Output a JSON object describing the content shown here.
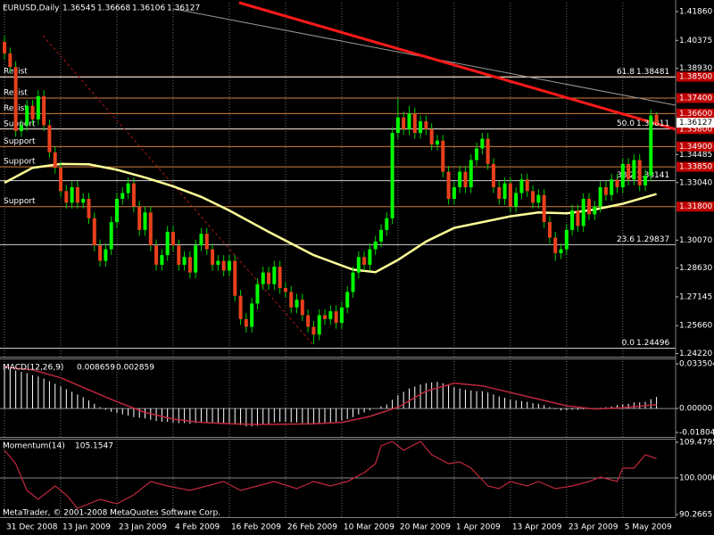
{
  "chart_data": [
    {
      "type": "candlestick",
      "title": "EURUSD,Daily",
      "footer": "MetaTrader, © 2001-2008 MetaQuotes Software Corp.",
      "xlim": [
        -0.8,
        119.4
      ],
      "xticks": [
        {
          "value": 0,
          "label": "31 Dec 2008"
        },
        {
          "value": 10,
          "label": "13 Jan 2009"
        },
        {
          "value": 20,
          "label": "23 Jan 2009"
        },
        {
          "value": 30,
          "label": "4 Feb 2009"
        },
        {
          "value": 40,
          "label": "16 Feb 2009"
        },
        {
          "value": 50,
          "label": "26 Feb 2009"
        },
        {
          "value": 60,
          "label": "10 Mar 2009"
        },
        {
          "value": 70,
          "label": "20 Mar 2009"
        },
        {
          "value": 80,
          "label": "1 Apr 2009"
        },
        {
          "value": 90,
          "label": "13 Apr 2009"
        },
        {
          "value": 100,
          "label": "23 Apr 2009"
        },
        {
          "value": 110,
          "label": "5 May 2009"
        }
      ],
      "grid": true,
      "ylim": [
        1.2406,
        1.4232
      ],
      "yticks": [
        {
          "value": 1.4186,
          "label": "1.41860"
        },
        1.40375,
        {
          "value": 1.3893,
          "label": "1.38930"
        },
        1.34485,
        {
          "value": 1.3304,
          "label": "1.33040"
        },
        {
          "value": 1.3007,
          "label": "1.30070"
        },
        {
          "value": 1.2863,
          "label": "1.28630"
        },
        1.27145,
        {
          "value": 1.2566,
          "label": "1.25660"
        },
        {
          "value": 1.2422,
          "label": "1.24220"
        }
      ],
      "bull_color": "#00ff00",
      "bear_color": "#e8401c",
      "wick_color": "#00d000",
      "candles": [
        [
          1.403,
          1.406,
          1.394,
          1.397
        ],
        [
          1.397,
          1.4,
          1.387,
          1.39
        ],
        [
          1.39,
          1.393,
          1.354,
          1.357
        ],
        [
          1.357,
          1.363,
          1.354,
          1.36
        ],
        [
          1.36,
          1.373,
          1.357,
          1.37
        ],
        [
          1.37,
          1.373,
          1.36,
          1.363
        ],
        [
          1.363,
          1.378,
          1.36,
          1.375
        ],
        [
          1.375,
          1.378,
          1.357,
          1.36
        ],
        [
          1.36,
          1.363,
          1.343,
          1.346
        ],
        [
          1.346,
          1.349,
          1.335,
          1.338
        ],
        [
          1.338,
          1.341,
          1.323,
          1.326
        ],
        [
          1.326,
          1.329,
          1.317,
          1.32
        ],
        [
          1.32,
          1.331,
          1.317,
          1.328
        ],
        [
          1.328,
          1.331,
          1.317,
          1.32
        ],
        [
          1.32,
          1.325,
          1.317,
          1.322
        ],
        [
          1.322,
          1.325,
          1.309,
          1.312
        ],
        [
          1.312,
          1.315,
          1.295,
          1.298
        ],
        [
          1.298,
          1.301,
          1.287,
          1.29
        ],
        [
          1.29,
          1.299,
          1.287,
          1.296
        ],
        [
          1.296,
          1.313,
          1.293,
          1.31
        ],
        [
          1.31,
          1.325,
          1.307,
          1.322
        ],
        [
          1.322,
          1.328,
          1.319,
          1.325
        ],
        [
          1.325,
          1.333,
          1.322,
          1.33
        ],
        [
          1.33,
          1.333,
          1.315,
          1.318
        ],
        [
          1.318,
          1.321,
          1.303,
          1.306
        ],
        [
          1.306,
          1.318,
          1.303,
          1.315
        ],
        [
          1.315,
          1.318,
          1.295,
          1.298
        ],
        [
          1.298,
          1.301,
          1.285,
          1.288
        ],
        [
          1.288,
          1.296,
          1.285,
          1.293
        ],
        [
          1.293,
          1.308,
          1.29,
          1.305
        ],
        [
          1.305,
          1.308,
          1.295,
          1.298
        ],
        [
          1.298,
          1.301,
          1.285,
          1.288
        ],
        [
          1.288,
          1.295,
          1.285,
          1.292
        ],
        [
          1.292,
          1.295,
          1.281,
          1.284
        ],
        [
          1.284,
          1.301,
          1.281,
          1.298
        ],
        [
          1.298,
          1.307,
          1.295,
          1.304
        ],
        [
          1.304,
          1.307,
          1.293,
          1.296
        ],
        [
          1.296,
          1.299,
          1.285,
          1.288
        ],
        [
          1.288,
          1.293,
          1.285,
          1.29
        ],
        [
          1.29,
          1.293,
          1.282,
          1.285
        ],
        [
          1.285,
          1.293,
          1.282,
          1.29
        ],
        [
          1.29,
          1.293,
          1.269,
          1.272
        ],
        [
          1.272,
          1.275,
          1.257,
          1.26
        ],
        [
          1.26,
          1.263,
          1.253,
          1.256
        ],
        [
          1.256,
          1.271,
          1.253,
          1.268
        ],
        [
          1.268,
          1.281,
          1.265,
          1.278
        ],
        [
          1.278,
          1.287,
          1.275,
          1.284
        ],
        [
          1.284,
          1.287,
          1.275,
          1.278
        ],
        [
          1.278,
          1.29,
          1.275,
          1.287
        ],
        [
          1.287,
          1.29,
          1.273,
          1.276
        ],
        [
          1.276,
          1.279,
          1.271,
          1.274
        ],
        [
          1.274,
          1.277,
          1.263,
          1.266
        ],
        [
          1.266,
          1.273,
          1.263,
          1.27
        ],
        [
          1.27,
          1.273,
          1.259,
          1.262
        ],
        [
          1.262,
          1.265,
          1.253,
          1.256
        ],
        [
          1.256,
          1.259,
          1.247,
          1.252
        ],
        [
          1.252,
          1.265,
          1.249,
          1.262
        ],
        [
          1.262,
          1.265,
          1.257,
          1.26
        ],
        [
          1.26,
          1.267,
          1.257,
          1.264
        ],
        [
          1.264,
          1.267,
          1.255,
          1.258
        ],
        [
          1.258,
          1.269,
          1.255,
          1.266
        ],
        [
          1.266,
          1.277,
          1.263,
          1.274
        ],
        [
          1.274,
          1.287,
          1.271,
          1.284
        ],
        [
          1.284,
          1.295,
          1.281,
          1.292
        ],
        [
          1.292,
          1.295,
          1.285,
          1.288
        ],
        [
          1.288,
          1.299,
          1.285,
          1.296
        ],
        [
          1.296,
          1.303,
          1.293,
          1.3
        ],
        [
          1.3,
          1.309,
          1.297,
          1.306
        ],
        [
          1.306,
          1.315,
          1.303,
          1.312
        ],
        [
          1.312,
          1.359,
          1.309,
          1.356
        ],
        [
          1.356,
          1.374,
          1.353,
          1.364
        ],
        [
          1.364,
          1.367,
          1.355,
          1.358
        ],
        [
          1.358,
          1.37,
          1.355,
          1.366
        ],
        [
          1.366,
          1.369,
          1.353,
          1.356
        ],
        [
          1.356,
          1.365,
          1.353,
          1.362
        ],
        [
          1.362,
          1.365,
          1.355,
          1.358
        ],
        [
          1.358,
          1.361,
          1.347,
          1.35
        ],
        [
          1.35,
          1.355,
          1.347,
          1.352
        ],
        [
          1.352,
          1.355,
          1.333,
          1.336
        ],
        [
          1.336,
          1.339,
          1.319,
          1.322
        ],
        [
          1.322,
          1.331,
          1.319,
          1.328
        ],
        [
          1.328,
          1.339,
          1.325,
          1.336
        ],
        [
          1.336,
          1.339,
          1.325,
          1.328
        ],
        [
          1.328,
          1.345,
          1.325,
          1.342
        ],
        [
          1.342,
          1.351,
          1.339,
          1.348
        ],
        [
          1.348,
          1.356,
          1.345,
          1.353
        ],
        [
          1.353,
          1.356,
          1.337,
          1.34
        ],
        [
          1.34,
          1.343,
          1.325,
          1.328
        ],
        [
          1.328,
          1.331,
          1.319,
          1.322
        ],
        [
          1.322,
          1.333,
          1.319,
          1.33
        ],
        [
          1.33,
          1.333,
          1.315,
          1.318
        ],
        [
          1.318,
          1.328,
          1.315,
          1.325
        ],
        [
          1.325,
          1.335,
          1.322,
          1.332
        ],
        [
          1.332,
          1.335,
          1.323,
          1.326
        ],
        [
          1.326,
          1.329,
          1.317,
          1.32
        ],
        [
          1.32,
          1.327,
          1.317,
          1.324
        ],
        [
          1.324,
          1.327,
          1.307,
          1.31
        ],
        [
          1.31,
          1.313,
          1.299,
          1.302
        ],
        [
          1.302,
          1.305,
          1.29,
          1.294
        ],
        [
          1.294,
          1.299,
          1.291,
          1.296
        ],
        [
          1.296,
          1.309,
          1.293,
          1.306
        ],
        [
          1.306,
          1.319,
          1.303,
          1.316
        ],
        [
          1.316,
          1.319,
          1.305,
          1.308
        ],
        [
          1.308,
          1.325,
          1.305,
          1.322
        ],
        [
          1.322,
          1.325,
          1.311,
          1.314
        ],
        [
          1.314,
          1.321,
          1.311,
          1.318
        ],
        [
          1.318,
          1.331,
          1.315,
          1.328
        ],
        [
          1.328,
          1.331,
          1.321,
          1.324
        ],
        [
          1.324,
          1.335,
          1.321,
          1.332
        ],
        [
          1.332,
          1.335,
          1.325,
          1.328
        ],
        [
          1.328,
          1.343,
          1.325,
          1.34
        ],
        [
          1.34,
          1.343,
          1.329,
          1.332
        ],
        [
          1.332,
          1.345,
          1.329,
          1.342
        ],
        [
          1.342,
          1.345,
          1.326,
          1.329
        ],
        [
          1.329,
          1.337,
          1.326,
          1.334
        ],
        [
          1.334,
          1.368,
          1.331,
          1.365
        ],
        [
          1.36545,
          1.36668,
          1.36106,
          1.36127
        ]
      ],
      "ma": {
        "color": "#ffff99",
        "x": [
          0,
          5,
          10,
          15,
          20,
          25,
          30,
          35,
          40,
          47,
          55,
          62,
          66,
          70,
          75,
          80,
          85,
          90,
          95,
          100,
          105,
          110,
          116
        ],
        "values": [
          1.3303,
          1.338,
          1.34,
          1.3398,
          1.337,
          1.333,
          1.3285,
          1.323,
          1.316,
          1.305,
          1.293,
          1.2855,
          1.2842,
          1.2905,
          1.3,
          1.307,
          1.31,
          1.313,
          1.315,
          1.3145,
          1.3165,
          1.3195,
          1.3245
        ]
      },
      "levels": {
        "color": "#d2803c",
        "box_color": "#c00000",
        "names": [
          "Resist",
          "Resist",
          "Resist",
          "Support",
          "Support",
          "Support",
          "Support"
        ],
        "values": [
          1.385,
          1.374,
          1.366,
          1.358,
          1.349,
          1.3385,
          1.318
        ],
        "value_labels": [
          "1.38500",
          "1.37400",
          "1.36600",
          "1.35800",
          "1.34900",
          "1.33850",
          "1.31800"
        ]
      },
      "fib": {
        "color": "#cfcfcf",
        "labels": [
          "61.8",
          "50.0",
          "38.2",
          "23.6",
          "0.0"
        ],
        "values": [
          1.38481,
          1.35811,
          1.33141,
          1.29837,
          1.24496
        ]
      }
    },
    {
      "type": "macd",
      "title": "MACD(12,26,9)",
      "ylim": [
        -0.0214,
        0.0369
      ],
      "yticks": [
        0.033504,
        {
          "value": 0,
          "label": "0.00000"
        },
        -0.01804
      ],
      "hist_color": "#ffffff",
      "signal_color": "#c0283c",
      "histogram": [
        0.03,
        0.0295,
        0.0285,
        0.0275,
        0.0265,
        0.025,
        0.024,
        0.0225,
        0.0205,
        0.0185,
        0.0165,
        0.0145,
        0.0125,
        0.0105,
        0.0085,
        0.006,
        0.0035,
        0.001,
        -0.001,
        -0.0025,
        -0.0035,
        -0.0045,
        -0.0055,
        -0.0065,
        -0.007,
        -0.0075,
        -0.0085,
        -0.0095,
        -0.01,
        -0.01,
        -0.0105,
        -0.011,
        -0.011,
        -0.0115,
        -0.011,
        -0.0105,
        -0.0105,
        -0.011,
        -0.011,
        -0.0115,
        -0.011,
        -0.0115,
        -0.0125,
        -0.0135,
        -0.0135,
        -0.013,
        -0.012,
        -0.0115,
        -0.0105,
        -0.01,
        -0.01,
        -0.0105,
        -0.0105,
        -0.011,
        -0.0115,
        -0.012,
        -0.0115,
        -0.011,
        -0.0105,
        -0.01,
        -0.009,
        -0.008,
        -0.0065,
        -0.0045,
        -0.003,
        -0.0015,
        0.0,
        0.0015,
        0.003,
        0.0065,
        0.01,
        0.0125,
        0.015,
        0.0165,
        0.018,
        0.019,
        0.0195,
        0.02,
        0.019,
        0.0175,
        0.016,
        0.015,
        0.014,
        0.0135,
        0.013,
        0.013,
        0.012,
        0.0105,
        0.009,
        0.008,
        0.0065,
        0.006,
        0.0055,
        0.005,
        0.004,
        0.0035,
        0.0025,
        0.001,
        -0.0005,
        -0.0015,
        -0.0015,
        -0.001,
        -0.001,
        -0.0005,
        -0.0005,
        0.0,
        0.0005,
        0.001,
        0.0015,
        0.0025,
        0.003,
        0.0035,
        0.0045,
        0.0045,
        0.005,
        0.007,
        0.008659
      ],
      "signal": {
        "x": [
          0,
          5,
          10,
          15,
          20,
          25,
          30,
          35,
          40,
          45,
          50,
          55,
          60,
          65,
          70,
          75,
          80,
          85,
          90,
          95,
          100,
          105,
          110,
          116
        ],
        "values": [
          0.031,
          0.029,
          0.023,
          0.014,
          0.005,
          -0.003,
          -0.008,
          -0.0105,
          -0.0115,
          -0.012,
          -0.0118,
          -0.0115,
          -0.0105,
          -0.006,
          0.001,
          0.013,
          0.019,
          0.017,
          0.012,
          0.007,
          0.002,
          -0.0005,
          0.0005,
          0.002859
        ]
      }
    },
    {
      "type": "line",
      "title": "Momentum(14)",
      "ylim": [
        89.57,
        110.43
      ],
      "yticks": [
        109.4795,
        {
          "value": 100,
          "label": "100.0000"
        },
        90.2665
      ],
      "color": "#c0283c",
      "x": [
        0,
        2,
        4,
        6,
        9,
        11,
        13,
        17,
        20,
        23,
        26,
        29,
        33,
        36,
        39,
        42,
        45,
        48,
        52,
        55,
        58,
        61,
        64,
        66,
        67,
        69,
        71,
        74,
        76,
        79,
        81,
        83,
        86,
        88,
        90,
        93,
        95,
        98,
        101,
        104,
        106,
        109,
        110,
        112,
        114,
        116
      ],
      "values": [
        107.35,
        103.79,
        96.68,
        94.31,
        97.87,
        95.5,
        91.94,
        94.31,
        93.13,
        95.5,
        99.05,
        97.87,
        96.68,
        97.87,
        99.05,
        96.68,
        97.87,
        99.05,
        97.16,
        99.05,
        97.87,
        99.05,
        101.42,
        103.79,
        108.53,
        109.72,
        107.35,
        109.72,
        106.16,
        103.79,
        104.27,
        102.61,
        97.87,
        97.16,
        99.05,
        97.87,
        99.05,
        97.16,
        97.87,
        99.05,
        100.24,
        99.05,
        102.61,
        102.61,
        106.16,
        105.1547
      ]
    }
  ]
}
